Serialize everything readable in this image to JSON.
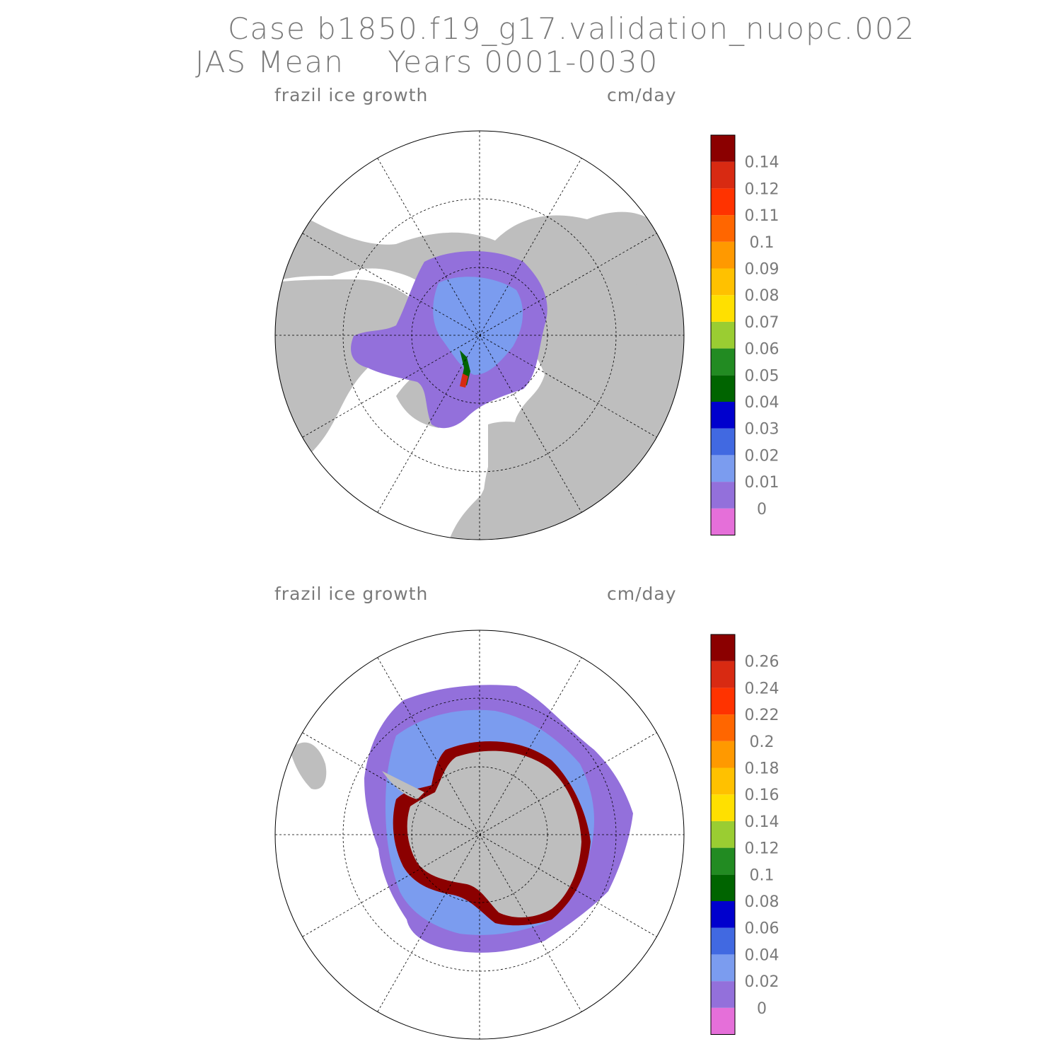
{
  "header": {
    "case_line": "Case b1850.f19_g17.validation_nuopc.002",
    "mean_line": "JAS Mean    Years 0001-0030"
  },
  "panels": [
    {
      "hemisphere": "north",
      "variable": "frazil ice growth",
      "units": "cm/day",
      "colorbar": {
        "colors": [
          "#e56fd9",
          "#9370db",
          "#7b9cef",
          "#4169e1",
          "#0000cd",
          "#006400",
          "#228b22",
          "#9acd32",
          "#ffe000",
          "#ffc100",
          "#ff9900",
          "#ff6600",
          "#ff3300",
          "#d82a12",
          "#8b0000"
        ],
        "labels": [
          "0",
          "0.01",
          "0.02",
          "0.03",
          "0.04",
          "0.05",
          "0.06",
          "0.07",
          "0.08",
          "0.09",
          "0.1",
          "0.11",
          "0.12",
          "0.14"
        ]
      }
    },
    {
      "hemisphere": "south",
      "variable": "frazil ice growth",
      "units": "cm/day",
      "colorbar": {
        "colors": [
          "#e56fd9",
          "#9370db",
          "#7b9cef",
          "#4169e1",
          "#0000cd",
          "#006400",
          "#228b22",
          "#9acd32",
          "#ffe000",
          "#ffc100",
          "#ff9900",
          "#ff6600",
          "#ff3300",
          "#d82a12",
          "#8b0000"
        ],
        "labels": [
          "0",
          "0.02",
          "0.04",
          "0.06",
          "0.08",
          "0.1",
          "0.12",
          "0.14",
          "0.16",
          "0.18",
          "0.2",
          "0.22",
          "0.24",
          "0.26"
        ]
      }
    }
  ],
  "map_colors": {
    "land": "#bebebe",
    "open_ocean": "#ffffff",
    "border": "#000000"
  }
}
